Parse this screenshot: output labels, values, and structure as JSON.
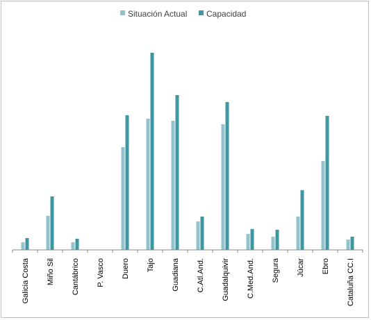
{
  "chart_data": {
    "type": "bar",
    "title": "",
    "xlabel": "",
    "ylabel": "",
    "categories": [
      "Galicia Costa",
      "Miño Sil",
      "Cantábrico",
      "P. Vasco",
      "Duero",
      "Tajo",
      "Guadiana",
      "C.Atl.And.",
      "Guadalquivir",
      "C.Med.And.",
      "Segura",
      "Júcar",
      "Ebro",
      "Cataluña CC.I"
    ],
    "series": [
      {
        "name": "Situación Actual",
        "color": "#93c3cc",
        "values": [
          11,
          49,
          11,
          0,
          148,
          189,
          186,
          41,
          181,
          23,
          19,
          48,
          128,
          15
        ]
      },
      {
        "name": "Capacidad",
        "color": "#3f97a3",
        "values": [
          17,
          77,
          16,
          0,
          194,
          284,
          223,
          48,
          213,
          30,
          29,
          86,
          193,
          19
        ]
      }
    ],
    "ylim": [
      0,
      300
    ],
    "grid": false,
    "legend_position": "top-center"
  }
}
